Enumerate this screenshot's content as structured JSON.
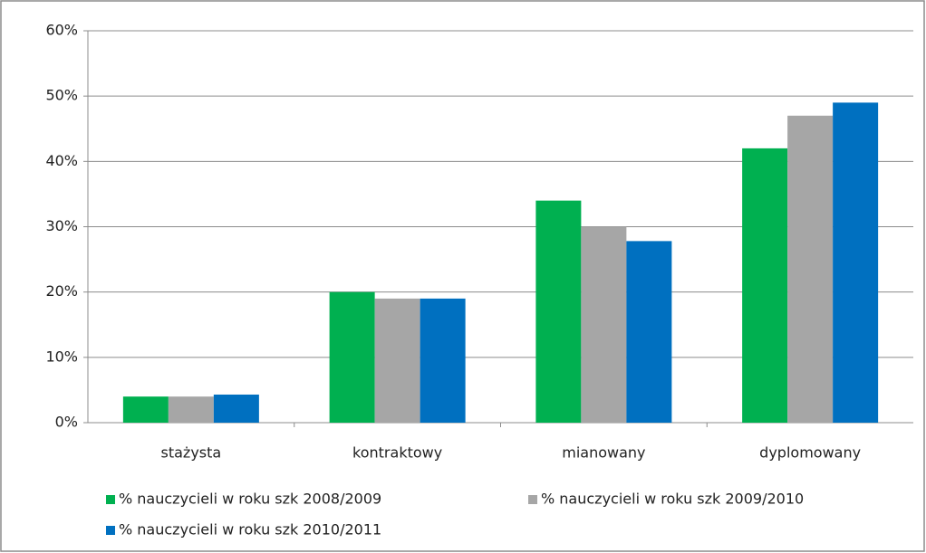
{
  "chart_data": {
    "type": "bar",
    "categories": [
      "stażysta",
      "kontraktowy",
      "mianowany",
      "dyplomowany"
    ],
    "series": [
      {
        "name": "% nauczycieli w roku szk 2008/2009",
        "color": "#00b050",
        "values": [
          4,
          20,
          34,
          42
        ]
      },
      {
        "name": "% nauczycieli w roku szk 2009/2010",
        "color": "#a6a6a6",
        "values": [
          4,
          19,
          30,
          47
        ]
      },
      {
        "name": "% nauczycieli w roku szk 2010/2011",
        "color": "#0070c0",
        "values": [
          4.3,
          19,
          27.8,
          49
        ]
      }
    ],
    "ylim": [
      0,
      60
    ],
    "yticks": [
      {
        "value": 0,
        "label": "0%"
      },
      {
        "value": 10,
        "label": "10%"
      },
      {
        "value": 20,
        "label": "20%"
      },
      {
        "value": 30,
        "label": "30%"
      },
      {
        "value": 40,
        "label": "40%"
      },
      {
        "value": 50,
        "label": "50%"
      },
      {
        "value": 60,
        "label": "60%"
      }
    ],
    "grid": true
  }
}
